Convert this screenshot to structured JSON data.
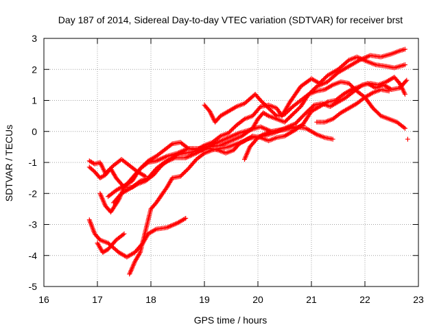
{
  "chart_data": {
    "type": "scatter",
    "title": "Day 187 of 2014, Sidereal Day-to-day VTEC variation (SDTVAR) for receiver brst",
    "xlabel": "GPS time / hours",
    "ylabel": "SDTVAR / TECUs",
    "xlim": [
      16,
      23
    ],
    "ylim": [
      -5,
      3
    ],
    "x_ticks": [
      "16",
      "17",
      "18",
      "19",
      "20",
      "21",
      "22",
      "23"
    ],
    "y_ticks": [
      "-5",
      "-4",
      "-3",
      "-2",
      "-1",
      "0",
      "1",
      "2",
      "3"
    ],
    "grid": true,
    "legend": "none",
    "marker": "+",
    "color": "#ff0000",
    "series": [
      {
        "points": [
          [
            16.85,
            -2.85
          ],
          [
            16.95,
            -3.3
          ],
          [
            17.05,
            -3.5
          ],
          [
            17.2,
            -3.6
          ],
          [
            17.4,
            -3.9
          ],
          [
            17.55,
            -4.05
          ],
          [
            17.7,
            -3.9
          ],
          [
            17.85,
            -3.6
          ],
          [
            17.95,
            -3.3
          ],
          [
            18.1,
            -3.15
          ],
          [
            18.3,
            -3.1
          ],
          [
            18.5,
            -2.95
          ],
          [
            18.65,
            -2.8
          ]
        ]
      },
      {
        "points": [
          [
            17.0,
            -3.6
          ],
          [
            17.1,
            -3.9
          ],
          [
            17.2,
            -3.8
          ],
          [
            17.35,
            -3.5
          ],
          [
            17.5,
            -3.3
          ]
        ]
      },
      {
        "points": [
          [
            16.85,
            -0.95
          ],
          [
            16.95,
            -1.05
          ],
          [
            17.05,
            -1.0
          ],
          [
            17.15,
            -1.35
          ],
          [
            17.3,
            -1.1
          ],
          [
            17.45,
            -0.9
          ],
          [
            17.6,
            -1.1
          ],
          [
            17.75,
            -1.3
          ],
          [
            17.9,
            -1.45
          ]
        ]
      },
      {
        "points": [
          [
            16.85,
            -1.15
          ],
          [
            16.95,
            -1.3
          ],
          [
            17.05,
            -1.5
          ],
          [
            17.15,
            -1.4
          ],
          [
            17.25,
            -1.2
          ],
          [
            17.35,
            -1.5
          ],
          [
            17.5,
            -1.8
          ],
          [
            17.65,
            -1.8
          ],
          [
            17.8,
            -1.6
          ],
          [
            17.95,
            -1.5
          ],
          [
            18.1,
            -1.2
          ],
          [
            18.25,
            -1.0
          ],
          [
            18.45,
            -0.85
          ],
          [
            18.65,
            -0.85
          ],
          [
            18.85,
            -0.7
          ],
          [
            19.05,
            -0.5
          ],
          [
            19.25,
            -0.35
          ],
          [
            19.45,
            -0.2
          ],
          [
            19.65,
            -0.05
          ],
          [
            19.85,
            0.05
          ],
          [
            20.05,
            0.15
          ],
          [
            20.25,
            0.0
          ],
          [
            20.5,
            0.05
          ],
          [
            20.7,
            0.15
          ],
          [
            20.9,
            0.1
          ],
          [
            21.1,
            -0.1
          ],
          [
            21.25,
            -0.2
          ],
          [
            21.4,
            -0.25
          ]
        ]
      },
      {
        "points": [
          [
            17.05,
            -2.0
          ],
          [
            17.15,
            -2.4
          ],
          [
            17.25,
            -2.6
          ],
          [
            17.4,
            -2.2
          ],
          [
            17.5,
            -1.8
          ],
          [
            17.6,
            -1.6
          ],
          [
            17.7,
            -1.4
          ],
          [
            17.8,
            -1.2
          ],
          [
            17.95,
            -1.0
          ],
          [
            18.1,
            -0.95
          ],
          [
            18.3,
            -0.8
          ],
          [
            18.5,
            -0.7
          ],
          [
            18.7,
            -0.55
          ],
          [
            18.9,
            -0.55
          ],
          [
            19.1,
            -0.5
          ],
          [
            19.3,
            -0.45
          ],
          [
            19.5,
            -0.3
          ],
          [
            19.7,
            -0.15
          ],
          [
            19.9,
            0.1
          ],
          [
            20.0,
            0.4
          ],
          [
            20.1,
            0.6
          ],
          [
            20.2,
            0.5
          ],
          [
            20.35,
            0.4
          ],
          [
            20.5,
            0.3
          ],
          [
            20.65,
            0.55
          ],
          [
            20.8,
            0.8
          ],
          [
            20.95,
            1.2
          ],
          [
            21.1,
            1.45
          ],
          [
            21.3,
            1.6
          ],
          [
            21.5,
            1.9
          ],
          [
            21.7,
            2.1
          ],
          [
            21.9,
            2.3
          ],
          [
            22.1,
            2.45
          ],
          [
            22.3,
            2.4
          ],
          [
            22.5,
            2.5
          ],
          [
            22.65,
            2.6
          ],
          [
            22.75,
            2.65
          ]
        ]
      },
      {
        "points": [
          [
            17.2,
            -2.1
          ],
          [
            17.35,
            -1.9
          ],
          [
            17.5,
            -1.75
          ],
          [
            17.65,
            -1.6
          ],
          [
            17.8,
            -1.2
          ],
          [
            17.95,
            -0.95
          ],
          [
            18.1,
            -0.8
          ],
          [
            18.25,
            -0.6
          ],
          [
            18.4,
            -0.4
          ],
          [
            18.55,
            -0.35
          ],
          [
            18.7,
            -0.55
          ],
          [
            18.85,
            -0.6
          ],
          [
            19.0,
            -0.45
          ],
          [
            19.15,
            -0.35
          ],
          [
            19.3,
            -0.15
          ],
          [
            19.45,
            -0.05
          ],
          [
            19.6,
            0.2
          ],
          [
            19.75,
            0.4
          ],
          [
            19.9,
            0.5
          ],
          [
            20.05,
            0.8
          ],
          [
            20.2,
            0.85
          ],
          [
            20.35,
            0.75
          ],
          [
            20.45,
            0.5
          ],
          [
            20.6,
            0.95
          ],
          [
            20.8,
            1.45
          ],
          [
            21.0,
            1.7
          ],
          [
            21.15,
            1.55
          ],
          [
            21.3,
            1.8
          ],
          [
            21.5,
            2.0
          ],
          [
            21.7,
            2.3
          ],
          [
            21.85,
            2.4
          ],
          [
            22.05,
            2.25
          ],
          [
            22.2,
            2.15
          ],
          [
            22.4,
            2.1
          ],
          [
            22.55,
            2.05
          ],
          [
            22.75,
            2.15
          ]
        ]
      },
      {
        "points": [
          [
            17.3,
            -2.3
          ],
          [
            17.45,
            -2.0
          ],
          [
            17.6,
            -1.85
          ],
          [
            17.75,
            -1.7
          ],
          [
            17.9,
            -1.6
          ],
          [
            18.05,
            -1.4
          ],
          [
            18.2,
            -1.1
          ],
          [
            18.35,
            -0.9
          ],
          [
            18.5,
            -0.75
          ],
          [
            18.65,
            -0.7
          ],
          [
            18.8,
            -0.65
          ],
          [
            18.95,
            -0.6
          ],
          [
            19.1,
            -0.55
          ],
          [
            19.25,
            -0.6
          ],
          [
            19.4,
            -0.7
          ],
          [
            19.55,
            -0.6
          ],
          [
            19.65,
            -0.4
          ],
          [
            19.8,
            -0.25
          ],
          [
            19.9,
            -0.2
          ],
          [
            20.1,
            -0.15
          ],
          [
            20.3,
            -0.05
          ],
          [
            20.5,
            0.1
          ],
          [
            20.7,
            0.25
          ],
          [
            20.9,
            0.6
          ],
          [
            21.05,
            0.85
          ],
          [
            21.2,
            0.9
          ],
          [
            21.35,
            0.8
          ],
          [
            21.5,
            0.95
          ],
          [
            21.65,
            1.1
          ],
          [
            21.8,
            1.3
          ],
          [
            21.95,
            1.5
          ],
          [
            22.1,
            1.55
          ],
          [
            22.25,
            1.5
          ],
          [
            22.4,
            1.6
          ],
          [
            22.55,
            1.75
          ],
          [
            22.65,
            1.55
          ],
          [
            22.75,
            1.2
          ]
        ]
      },
      {
        "points": [
          [
            17.6,
            -4.6
          ],
          [
            17.7,
            -4.2
          ],
          [
            17.8,
            -3.9
          ],
          [
            17.9,
            -3.2
          ],
          [
            18.0,
            -2.5
          ],
          [
            18.1,
            -2.3
          ],
          [
            18.2,
            -2.05
          ],
          [
            18.3,
            -1.8
          ],
          [
            18.4,
            -1.5
          ],
          [
            18.55,
            -1.45
          ],
          [
            18.7,
            -1.2
          ],
          [
            18.85,
            -0.9
          ],
          [
            19.0,
            -0.7
          ],
          [
            19.15,
            -0.6
          ],
          [
            19.3,
            -0.55
          ],
          [
            19.45,
            -0.5
          ],
          [
            19.6,
            -0.4
          ],
          [
            19.75,
            -0.3
          ],
          [
            19.9,
            -0.15
          ],
          [
            20.05,
            -0.2
          ],
          [
            20.2,
            -0.3
          ],
          [
            20.35,
            -0.2
          ],
          [
            20.5,
            -0.15
          ],
          [
            20.7,
            0.05
          ],
          [
            20.85,
            0.25
          ],
          [
            21.0,
            0.65
          ],
          [
            21.15,
            0.8
          ],
          [
            21.3,
            0.95
          ],
          [
            21.45,
            1.0
          ],
          [
            21.6,
            1.2
          ],
          [
            21.75,
            1.35
          ],
          [
            21.9,
            1.45
          ],
          [
            22.05,
            1.55
          ],
          [
            22.2,
            1.4
          ],
          [
            22.35,
            1.5
          ],
          [
            22.5,
            1.35
          ],
          [
            22.65,
            1.4
          ],
          [
            22.78,
            1.65
          ]
        ]
      },
      {
        "points": [
          [
            19.0,
            0.85
          ],
          [
            19.1,
            0.65
          ],
          [
            19.2,
            0.3
          ],
          [
            19.3,
            0.5
          ],
          [
            19.45,
            0.65
          ],
          [
            19.6,
            0.8
          ],
          [
            19.75,
            0.9
          ],
          [
            19.85,
            1.05
          ],
          [
            19.95,
            1.2
          ],
          [
            20.05,
            1.0
          ],
          [
            20.2,
            0.75
          ],
          [
            20.35,
            0.5
          ],
          [
            20.5,
            0.55
          ],
          [
            20.65,
            0.8
          ],
          [
            20.8,
            1.0
          ],
          [
            20.95,
            1.2
          ],
          [
            21.1,
            1.3
          ],
          [
            21.25,
            1.35
          ],
          [
            21.4,
            1.5
          ],
          [
            21.55,
            1.6
          ],
          [
            21.7,
            1.55
          ],
          [
            21.85,
            1.3
          ],
          [
            22.0,
            1.1
          ],
          [
            22.15,
            0.75
          ],
          [
            22.3,
            0.5
          ],
          [
            22.45,
            0.4
          ],
          [
            22.6,
            0.3
          ],
          [
            22.75,
            0.1
          ]
        ]
      },
      {
        "points": [
          [
            19.75,
            -0.9
          ],
          [
            19.85,
            -0.5
          ],
          [
            20.0,
            -0.2
          ],
          [
            20.1,
            -0.1
          ],
          [
            20.25,
            0.0
          ],
          [
            20.4,
            0.05
          ],
          [
            20.55,
            0.1
          ],
          [
            20.7,
            0.1
          ],
          [
            20.85,
            0.2
          ]
        ]
      },
      {
        "points": [
          [
            21.1,
            0.3
          ],
          [
            21.25,
            0.3
          ],
          [
            21.4,
            0.4
          ],
          [
            21.55,
            0.6
          ],
          [
            21.7,
            0.75
          ],
          [
            21.85,
            0.9
          ],
          [
            22.0,
            1.1
          ],
          [
            22.15,
            1.25
          ],
          [
            22.3,
            1.35
          ],
          [
            22.45,
            1.3
          ]
        ]
      },
      {
        "points": [
          [
            22.8,
            -0.25
          ]
        ]
      }
    ]
  }
}
